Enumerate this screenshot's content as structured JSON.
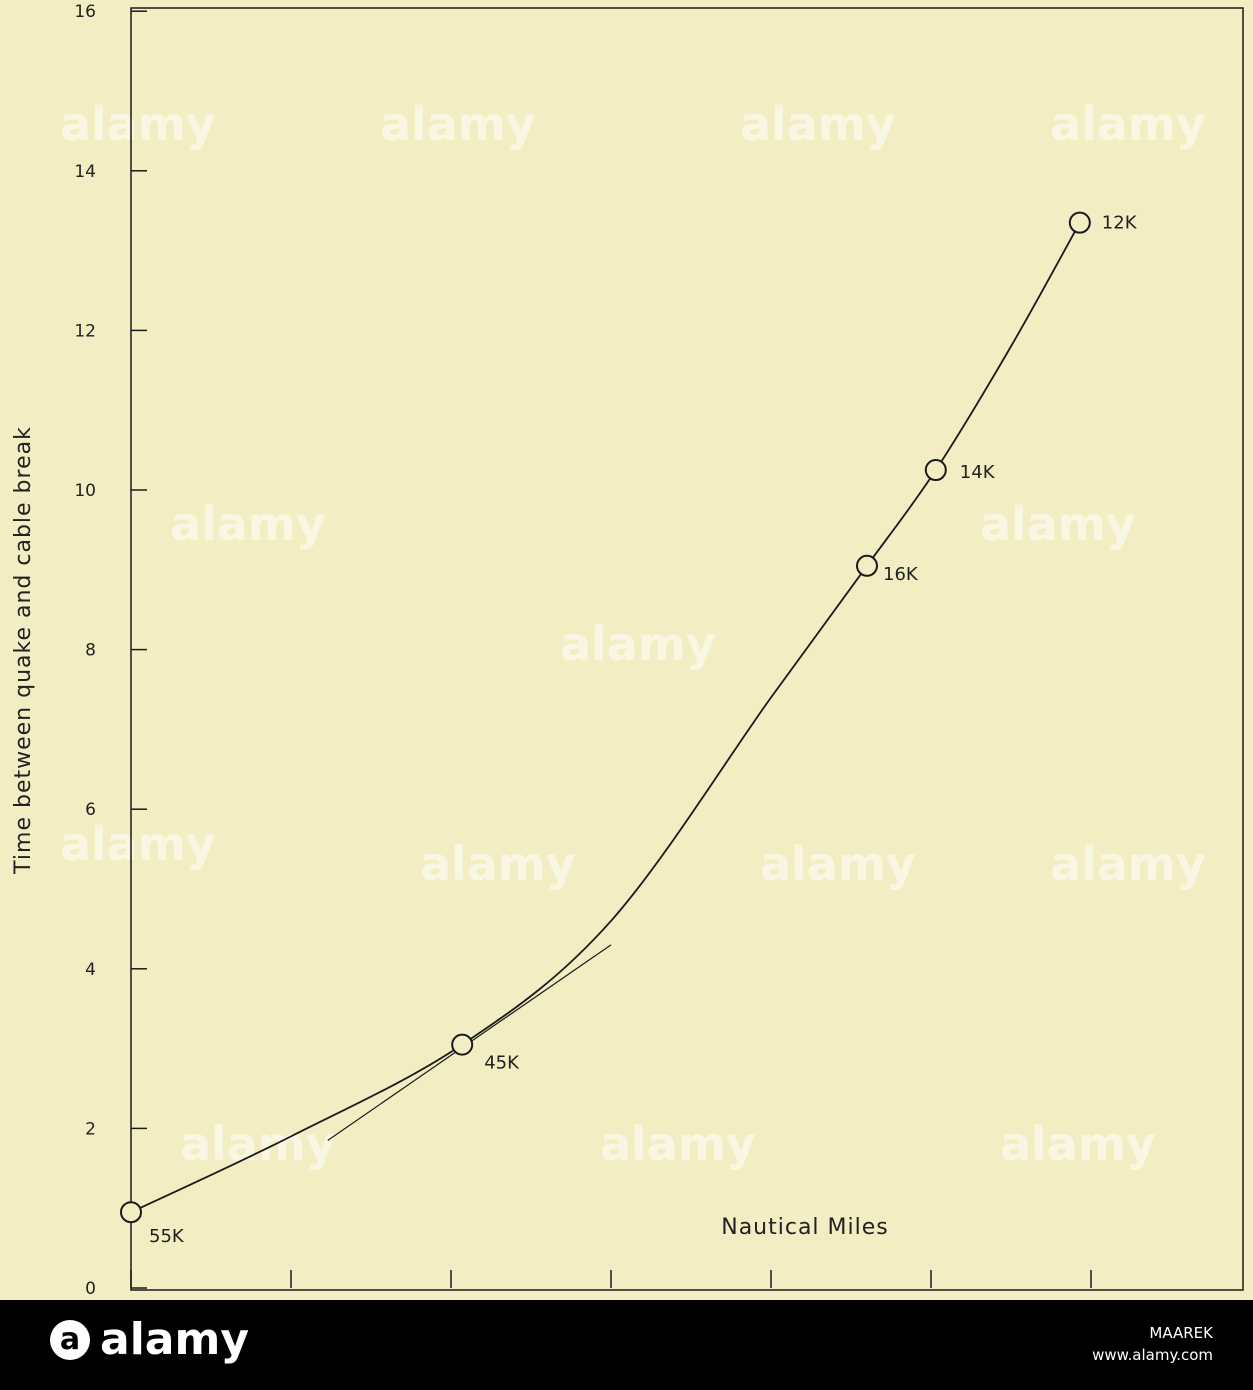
{
  "chart_data": {
    "type": "line",
    "ylabel": "Time between quake and cable break",
    "xlabel": "Nautical Miles",
    "ylim": [
      0,
      16
    ],
    "yticks": [
      0,
      2,
      4,
      6,
      8,
      10,
      12,
      14,
      16
    ],
    "ytick_labels": [
      "0",
      "2",
      "4",
      "6",
      "8",
      "10",
      "12",
      "14",
      "16"
    ],
    "xlim": [
      0,
      7
    ],
    "xticks": [
      0,
      1,
      2,
      3,
      4,
      5,
      6
    ],
    "grid": false,
    "points": [
      {
        "x": 0.0,
        "y": 0.95,
        "label": "55K"
      },
      {
        "x": 2.07,
        "y": 3.05,
        "label": "45K"
      },
      {
        "x": 4.6,
        "y": 9.05,
        "label": "16K"
      },
      {
        "x": 5.03,
        "y": 10.25,
        "label": "14K"
      },
      {
        "x": 5.93,
        "y": 13.35,
        "label": "12K"
      }
    ],
    "curve": [
      {
        "x": 0.0,
        "y": 0.95
      },
      {
        "x": 1.0,
        "y": 1.9
      },
      {
        "x": 2.07,
        "y": 3.05
      },
      {
        "x": 3.0,
        "y": 4.6
      },
      {
        "x": 4.0,
        "y": 7.4
      },
      {
        "x": 4.6,
        "y": 9.05
      },
      {
        "x": 5.03,
        "y": 10.25
      },
      {
        "x": 5.5,
        "y": 11.8
      },
      {
        "x": 5.93,
        "y": 13.35
      }
    ],
    "tangent": [
      {
        "x": 1.23,
        "y": 1.85
      },
      {
        "x": 3.0,
        "y": 4.3
      }
    ]
  },
  "footer": {
    "brand": "alamy",
    "image_id": "MAAREK",
    "site": "www.alamy.com"
  },
  "watermark": "alamy",
  "colors": {
    "background": "#f3edc3",
    "ink": "#1a1a1a",
    "footer": "#000000"
  }
}
